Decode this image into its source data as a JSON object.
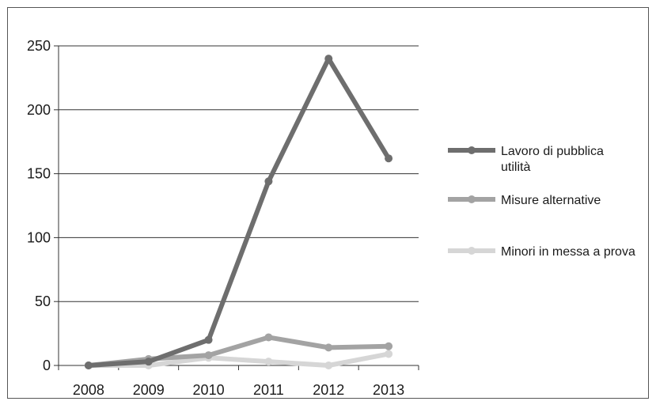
{
  "chart_data": {
    "type": "line",
    "title": "",
    "xlabel": "",
    "ylabel": "",
    "ylim": [
      0,
      250
    ],
    "grid": true,
    "legend_position": "right",
    "categories": [
      "2008",
      "2009",
      "2010",
      "2011",
      "2012",
      "2013"
    ],
    "y_ticks": [
      "0",
      "50",
      "100",
      "150",
      "200",
      "250"
    ],
    "series": [
      {
        "name": "Lavoro di pubblica utilità",
        "legend_lines": [
          "Lavoro di pubblica",
          "utilità"
        ],
        "color": "#6e6e6e",
        "values": [
          0,
          3,
          20,
          144,
          240,
          162
        ]
      },
      {
        "name": "Misure alternative",
        "legend_lines": [
          "Misure alternative"
        ],
        "color": "#a3a3a3",
        "values": [
          0,
          5,
          8,
          22,
          14,
          15
        ]
      },
      {
        "name": "Minori in messa a prova",
        "legend_lines": [
          "Minori in messa a prova"
        ],
        "color": "#d6d6d6",
        "values": [
          0,
          0,
          6,
          3,
          0,
          9
        ]
      }
    ]
  }
}
